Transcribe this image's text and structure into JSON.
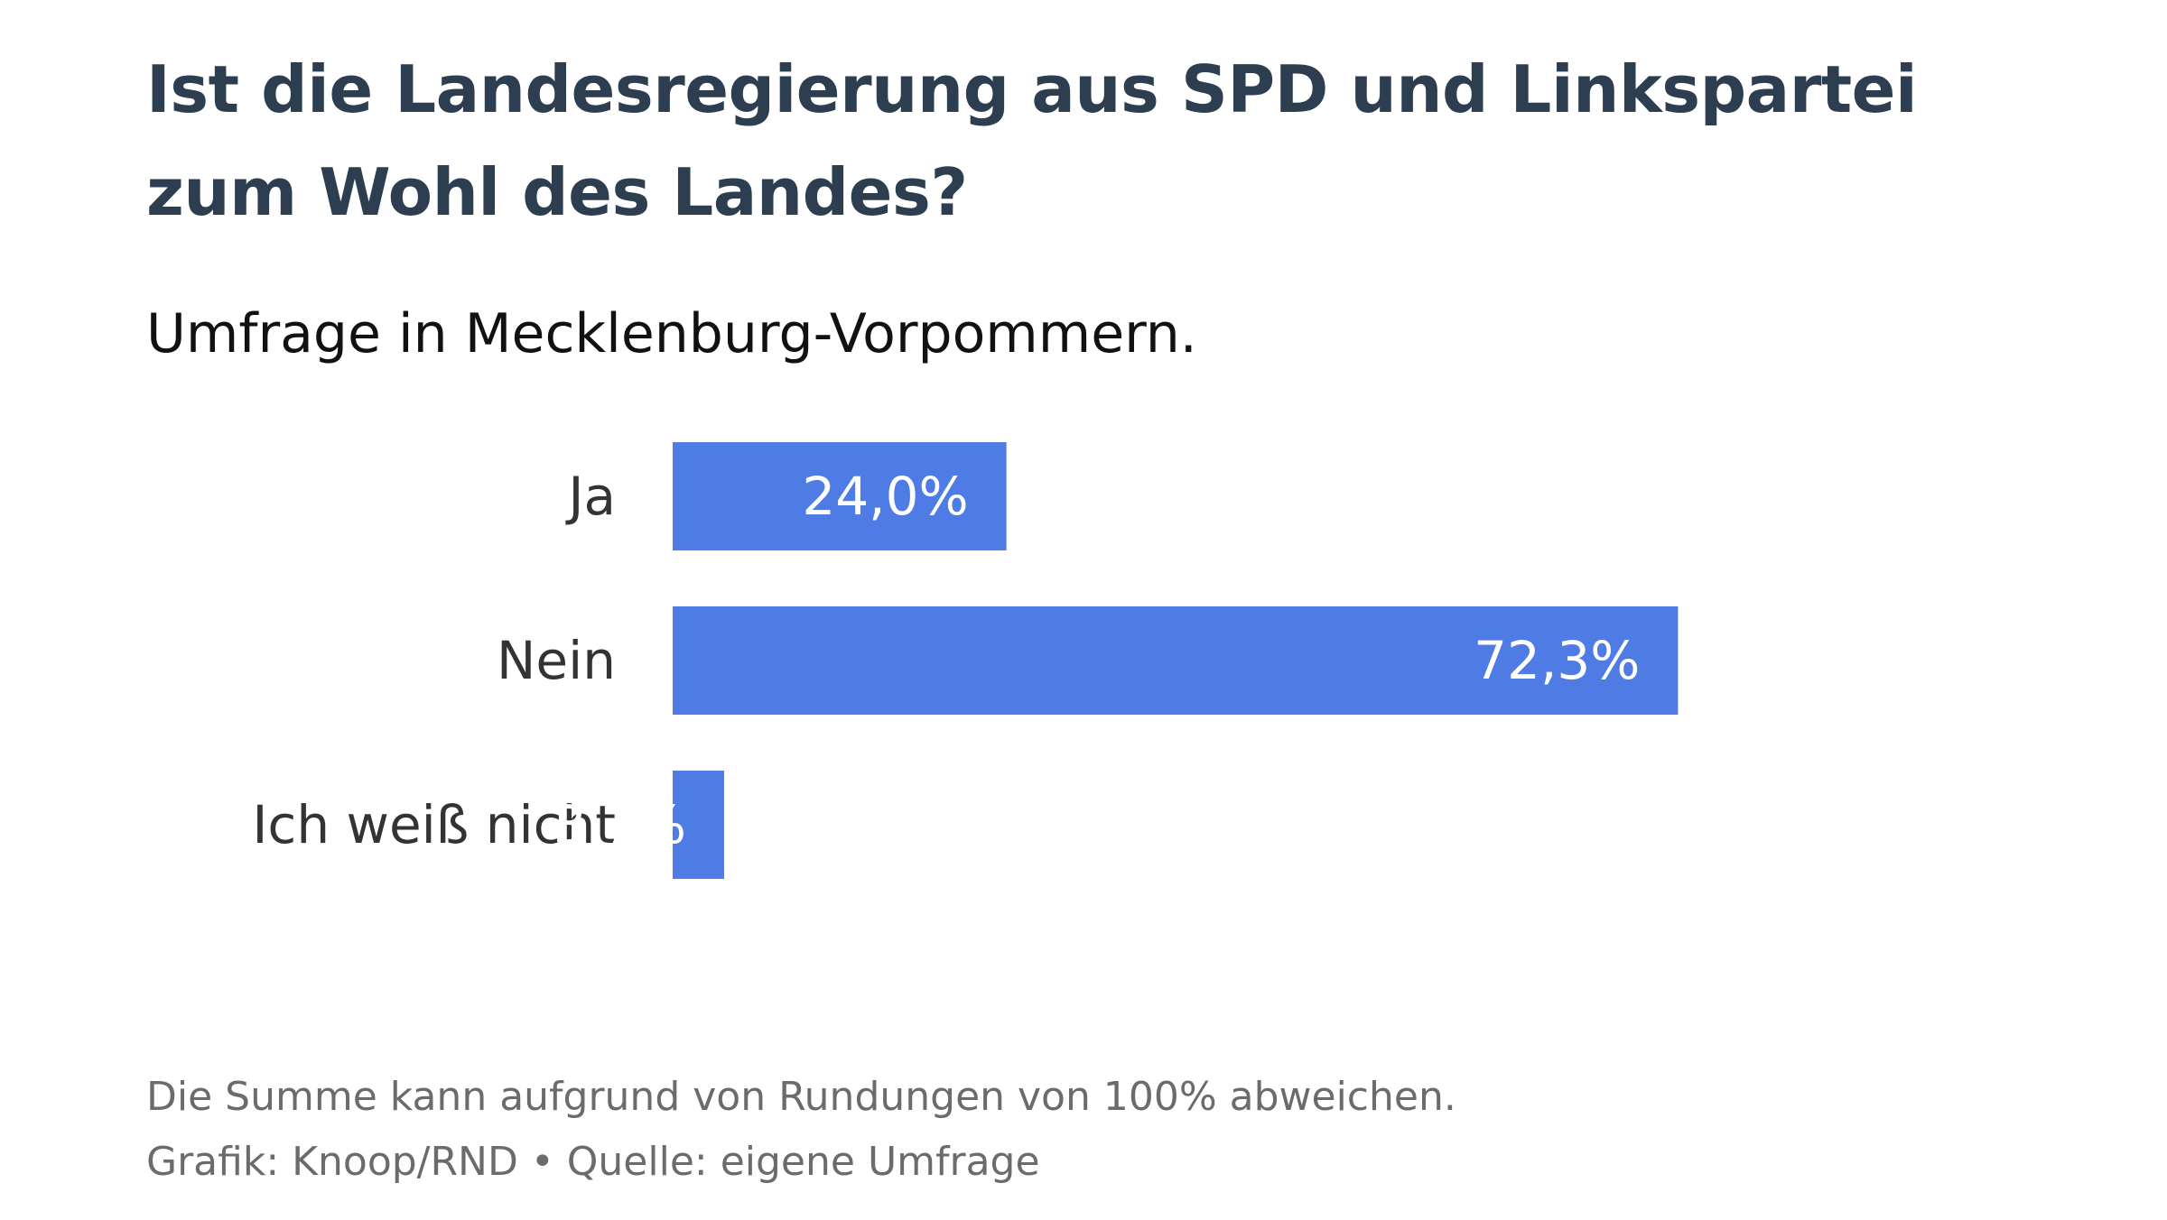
{
  "header": {
    "title": "Ist die Landesregierung aus SPD und Linkspartei zum Wohl des Landes?",
    "subtitle": "Umfrage in Mecklenburg-Vorpommern."
  },
  "footer": {
    "note": "Die Summe kann aufgrund von Rundungen von 100% abweichen.",
    "credit": "Grafik: Knoop/RND • Quelle: eigene Umfrage"
  },
  "colors": {
    "bar": "#4f7be4",
    "title": "#2c3e50"
  },
  "chart_data": {
    "type": "bar",
    "orientation": "horizontal",
    "title": "Ist die Landesregierung aus SPD und Linkspartei zum Wohl des Landes?",
    "subtitle": "Umfrage in Mecklenburg-Vorpommern.",
    "categories": [
      "Ja",
      "Nein",
      "Ich weiß nicht"
    ],
    "values": [
      24.0,
      72.3,
      3.7
    ],
    "value_labels": [
      "24,0%",
      "72,3%",
      "3,7%"
    ],
    "unit": "%",
    "xlim": [
      0,
      100
    ],
    "grid": false,
    "legend": "none"
  }
}
